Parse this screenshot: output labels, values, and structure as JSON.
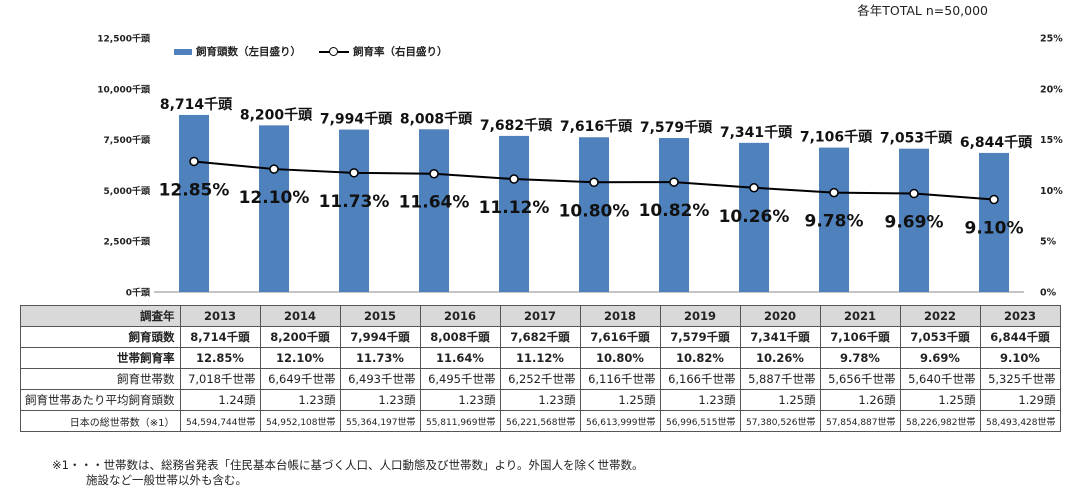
{
  "total_note": "各年TOTAL n=50,000",
  "legend": {
    "bar_label": "飼育頭数（左目盛り）",
    "line_label": "飼育率（右目盛り）"
  },
  "colors": {
    "bar": "#4f81bd",
    "line": "#000000"
  },
  "chart_data": {
    "type": "bar",
    "categories": [
      "2013",
      "2014",
      "2015",
      "2016",
      "2017",
      "2018",
      "2019",
      "2020",
      "2021",
      "2022",
      "2023"
    ],
    "series": [
      {
        "name": "飼育頭数（左目盛り）",
        "type": "bar",
        "axis": "left",
        "values": [
          8714,
          8200,
          7994,
          8008,
          7682,
          7616,
          7579,
          7341,
          7106,
          7053,
          6844
        ],
        "labels": [
          "8,714千頭",
          "8,200千頭",
          "7,994千頭",
          "8,008千頭",
          "7,682千頭",
          "7,616千頭",
          "7,579千頭",
          "7,341千頭",
          "7,106千頭",
          "7,053千頭",
          "6,844千頭"
        ]
      },
      {
        "name": "飼育率（右目盛り）",
        "type": "line",
        "axis": "right",
        "values": [
          12.85,
          12.1,
          11.73,
          11.64,
          11.12,
          10.8,
          10.82,
          10.26,
          9.78,
          9.69,
          9.1
        ],
        "labels": [
          "12.85%",
          "12.10%",
          "11.73%",
          "11.64%",
          "11.12%",
          "10.80%",
          "10.82%",
          "10.26%",
          "9.78%",
          "9.69%",
          "9.10%"
        ]
      }
    ],
    "y_left": {
      "ylim": [
        0,
        12500
      ],
      "ticks": [
        "0千頭",
        "2,500千頭",
        "5,000千頭",
        "7,500千頭",
        "10,000千頭",
        "12,500千頭"
      ]
    },
    "y_right": {
      "ylim": [
        0,
        25
      ],
      "ticks": [
        "0%",
        "5%",
        "10%",
        "15%",
        "20%",
        "25%"
      ]
    },
    "grid": false,
    "legend_position": "top-left"
  },
  "table": {
    "rows": [
      {
        "header": "調査年",
        "style": "hdr",
        "cells": [
          "2013",
          "2014",
          "2015",
          "2016",
          "2017",
          "2018",
          "2019",
          "2020",
          "2021",
          "2022",
          "2023"
        ]
      },
      {
        "header": "飼育頭数",
        "style": "bold",
        "cells": [
          "8,714千頭",
          "8,200千頭",
          "7,994千頭",
          "8,008千頭",
          "7,682千頭",
          "7,616千頭",
          "7,579千頭",
          "7,341千頭",
          "7,106千頭",
          "7,053千頭",
          "6,844千頭"
        ]
      },
      {
        "header": "世帯飼育率",
        "style": "bold",
        "cells": [
          "12.85%",
          "12.10%",
          "11.73%",
          "11.64%",
          "11.12%",
          "10.80%",
          "10.82%",
          "10.26%",
          "9.78%",
          "9.69%",
          "9.10%"
        ]
      },
      {
        "header": "飼育世帯数",
        "style": "norm",
        "cells": [
          "7,018千世帯",
          "6,649千世帯",
          "6,493千世帯",
          "6,495千世帯",
          "6,252千世帯",
          "6,116千世帯",
          "6,166千世帯",
          "5,887千世帯",
          "5,656千世帯",
          "5,640千世帯",
          "5,325千世帯"
        ]
      },
      {
        "header": "飼育世帯あたり平均飼育頭数",
        "style": "norm",
        "cells": [
          "1.24頭",
          "1.23頭",
          "1.23頭",
          "1.23頭",
          "1.23頭",
          "1.25頭",
          "1.23頭",
          "1.25頭",
          "1.26頭",
          "1.25頭",
          "1.29頭"
        ]
      },
      {
        "header": "日本の総世帯数（※1）",
        "style": "small",
        "cells": [
          "54,594,744世帯",
          "54,952,108世帯",
          "55,364,197世帯",
          "55,811,969世帯",
          "56,221,568世帯",
          "56,613,999世帯",
          "56,996,515世帯",
          "57,380,526世帯",
          "57,854,887世帯",
          "58,226,982世帯",
          "58,493,428世帯"
        ]
      }
    ]
  },
  "footnote": {
    "line1": "※1・・・世帯数は、総務省発表「住民基本台帳に基づく人口、人口動態及び世帯数」より。外国人を除く世帯数。",
    "line2": "施設など一般世帯以外も含む。"
  }
}
